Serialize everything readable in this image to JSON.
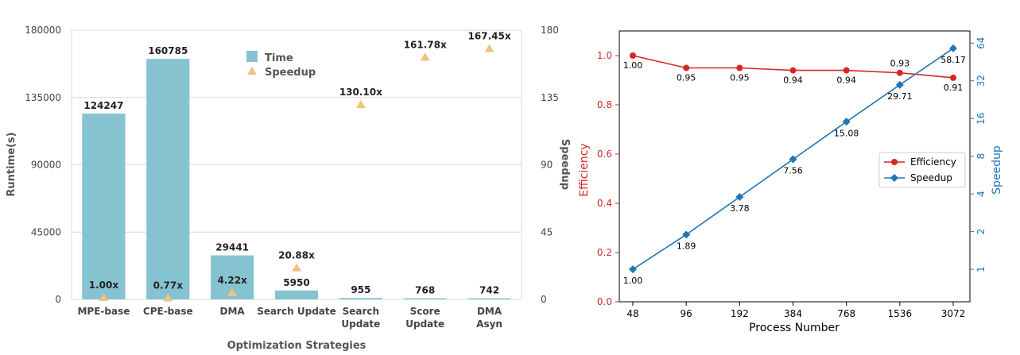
{
  "chart_data": [
    {
      "type": "bar",
      "xlabel": "Optimization Strategies",
      "ylabel": "Runtime(s)",
      "y2label": "Speedup",
      "ylim": [
        0,
        180000
      ],
      "y2lim": [
        0,
        180
      ],
      "yticks": [
        "0",
        "45000",
        "90000",
        "135000",
        "180000"
      ],
      "y2ticks": [
        "0",
        "45",
        "90",
        "135",
        "180"
      ],
      "categories": [
        [
          "MPE-base"
        ],
        [
          "CPE-base"
        ],
        [
          "DMA"
        ],
        [
          "Search Update"
        ],
        [
          "Search",
          "Update"
        ],
        [
          "Score",
          "Update"
        ],
        [
          "DMA",
          "Asyn"
        ]
      ],
      "grid": "horizontal",
      "legend_position": "top-center",
      "series": [
        {
          "name": "Time",
          "kind": "bar",
          "color": "#86c3d1",
          "values": [
            124247,
            160785,
            29441,
            5950,
            955,
            768,
            742
          ],
          "labels": [
            "124247",
            "160785",
            "29441",
            "5950",
            "955",
            "768",
            "742"
          ]
        },
        {
          "name": "Speedup",
          "kind": "marker",
          "marker": "triangle",
          "color": "#f0c27f",
          "values": [
            1.0,
            0.77,
            4.22,
            20.88,
            130.1,
            161.78,
            167.45
          ],
          "labels": [
            "1.00x",
            "0.77x",
            "4.22x",
            "20.88x",
            "130.10x",
            "161.78x",
            "167.45x"
          ]
        }
      ]
    },
    {
      "type": "line",
      "xlabel": "Process Number",
      "ylabel": "Efficiency",
      "y2label": "Speedup",
      "ylim": [
        0.0,
        1.1
      ],
      "yticks": [
        "0.0",
        "0.2",
        "0.4",
        "0.6",
        "0.8",
        "1.0"
      ],
      "y2scale": "log2",
      "y2lim": [
        0.55,
        80
      ],
      "y2ticks": [
        "1",
        "2",
        "4",
        "8",
        "16",
        "32",
        "64"
      ],
      "x": [
        "48",
        "96",
        "192",
        "384",
        "768",
        "1536",
        "3072"
      ],
      "legend_position": "center-right",
      "series": [
        {
          "name": "Efficiency",
          "axis": "left",
          "marker": "circle",
          "color": "#d62728",
          "values": [
            1.0,
            0.95,
            0.95,
            0.94,
            0.94,
            0.93,
            0.91
          ],
          "labels": [
            "1.00",
            "0.95",
            "0.95",
            "0.94",
            "0.94",
            "0.93",
            "0.91"
          ]
        },
        {
          "name": "Speedup",
          "axis": "right",
          "marker": "diamond",
          "color": "#1f77b4",
          "values": [
            1.0,
            1.89,
            3.78,
            7.56,
            15.08,
            29.71,
            58.17
          ],
          "labels": [
            "1.00",
            "1.89",
            "3.78",
            "7.56",
            "15.08",
            "29.71",
            "58.17"
          ]
        }
      ]
    }
  ]
}
